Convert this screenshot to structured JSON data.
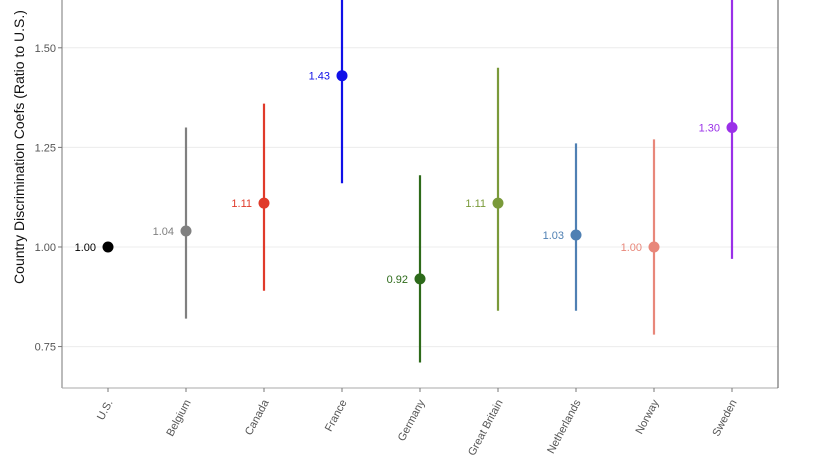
{
  "chart_data": {
    "type": "scatter",
    "title": "",
    "xlabel": "",
    "ylabel": "Country Discrimination Coefs (Ratio to U.S.)",
    "ylim": [
      0.646,
      1.62
    ],
    "yticks": [
      0.75,
      1.0,
      1.25,
      1.5
    ],
    "ytick_labels": [
      "0.75",
      "1.00",
      "1.25",
      "1.50"
    ],
    "grid": "horizontal major",
    "legend": "none",
    "categories": [
      "U.S.",
      "Belgium",
      "Canada",
      "France",
      "Germany",
      "Great Britain",
      "Netherlands",
      "Norway",
      "Sweden"
    ],
    "points": [
      {
        "country": "U.S.",
        "value": 1.0,
        "label": "1.00",
        "lower": null,
        "upper": null,
        "color": "#000000"
      },
      {
        "country": "Belgium",
        "value": 1.04,
        "label": "1.04",
        "lower": 0.82,
        "upper": 1.3,
        "color": "#808080"
      },
      {
        "country": "Canada",
        "value": 1.11,
        "label": "1.11",
        "lower": 0.89,
        "upper": 1.36,
        "color": "#e03a2a"
      },
      {
        "country": "France",
        "value": 1.43,
        "label": "1.43",
        "lower": 1.16,
        "upper": 1.7,
        "color": "#1010e8"
      },
      {
        "country": "Germany",
        "value": 0.92,
        "label": "0.92",
        "lower": 0.71,
        "upper": 1.18,
        "color": "#2d6a1a"
      },
      {
        "country": "Great Britain",
        "value": 1.11,
        "label": "1.11",
        "lower": 0.84,
        "upper": 1.45,
        "color": "#7a9a3a"
      },
      {
        "country": "Netherlands",
        "value": 1.03,
        "label": "1.03",
        "lower": 0.84,
        "upper": 1.26,
        "color": "#4f80b3"
      },
      {
        "country": "Norway",
        "value": 1.0,
        "label": "1.00",
        "lower": 0.78,
        "upper": 1.27,
        "color": "#e8877a"
      },
      {
        "country": "Sweden",
        "value": 1.3,
        "label": "1.30",
        "lower": 0.97,
        "upper": 1.66,
        "color": "#9a30e8"
      }
    ]
  }
}
